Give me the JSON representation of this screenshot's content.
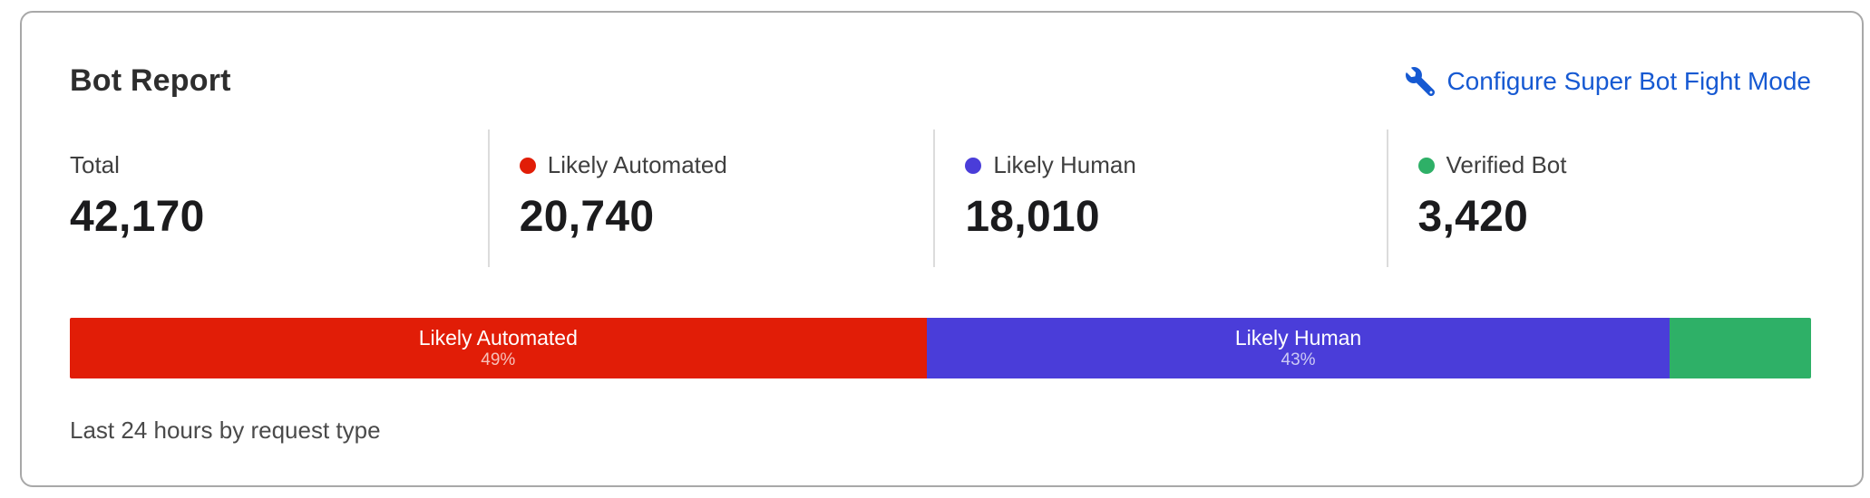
{
  "header": {
    "title": "Bot Report",
    "configure_link": {
      "label": "Configure Super Bot Fight Mode",
      "icon": "wrench-icon",
      "color": "#1659d2"
    }
  },
  "stats": [
    {
      "label": "Total",
      "value": "42,170"
    },
    {
      "label": "Likely Automated",
      "value": "20,740",
      "dot_color": "#e11d07"
    },
    {
      "label": "Likely Human",
      "value": "18,010",
      "dot_color": "#4a3dd9"
    },
    {
      "label": "Verified Bot",
      "value": "3,420",
      "dot_color": "#2eb067"
    }
  ],
  "footer": "Last 24 hours by request type",
  "chart_data": {
    "type": "bar",
    "variant": "stacked-horizontal",
    "title": "Bot Report",
    "period_label": "Last 24 hours by request type",
    "total": 42170,
    "categories": [
      "Likely Automated",
      "Likely Human",
      "Verified Bot"
    ],
    "values": [
      20740,
      18010,
      3420
    ],
    "segments": [
      {
        "name": "Likely Automated",
        "value": 20740,
        "percent_label": "49%",
        "width": "49.2%",
        "color": "#e11d07"
      },
      {
        "name": "Likely Human",
        "value": 18010,
        "percent_label": "43%",
        "width": "42.7%",
        "color": "#4a3dd9"
      },
      {
        "name": "Verified Bot",
        "value": 3420,
        "percent_label": "",
        "width": "8.1%",
        "color": "#2eb067"
      }
    ]
  }
}
